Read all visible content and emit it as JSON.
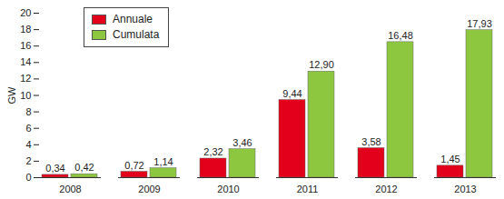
{
  "chart_data": {
    "type": "bar",
    "categories": [
      "2008",
      "2009",
      "2010",
      "2011",
      "2012",
      "2013"
    ],
    "y_label": "GW",
    "series": [
      {
        "name": "Annuale",
        "color": "#e2001a",
        "values": [
          0.34,
          0.72,
          2.32,
          9.44,
          3.58,
          1.45
        ],
        "value_labels": [
          "0,34",
          "0,72",
          "2,32",
          "9,44",
          "3,58",
          "1,45"
        ]
      },
      {
        "name": "Cumulata",
        "color": "#8dc63f",
        "values": [
          0.42,
          1.14,
          3.46,
          12.9,
          16.48,
          17.93
        ],
        "value_labels": [
          "0,42",
          "1,14",
          "3,46",
          "12,90",
          "16,48",
          "17,93"
        ]
      }
    ],
    "ylim": [
      0,
      20
    ],
    "yticks": [
      0,
      2,
      4,
      6,
      8,
      10,
      12,
      14,
      16,
      18,
      20
    ],
    "grid": false,
    "legend": "top-left",
    "data_labels": true
  }
}
